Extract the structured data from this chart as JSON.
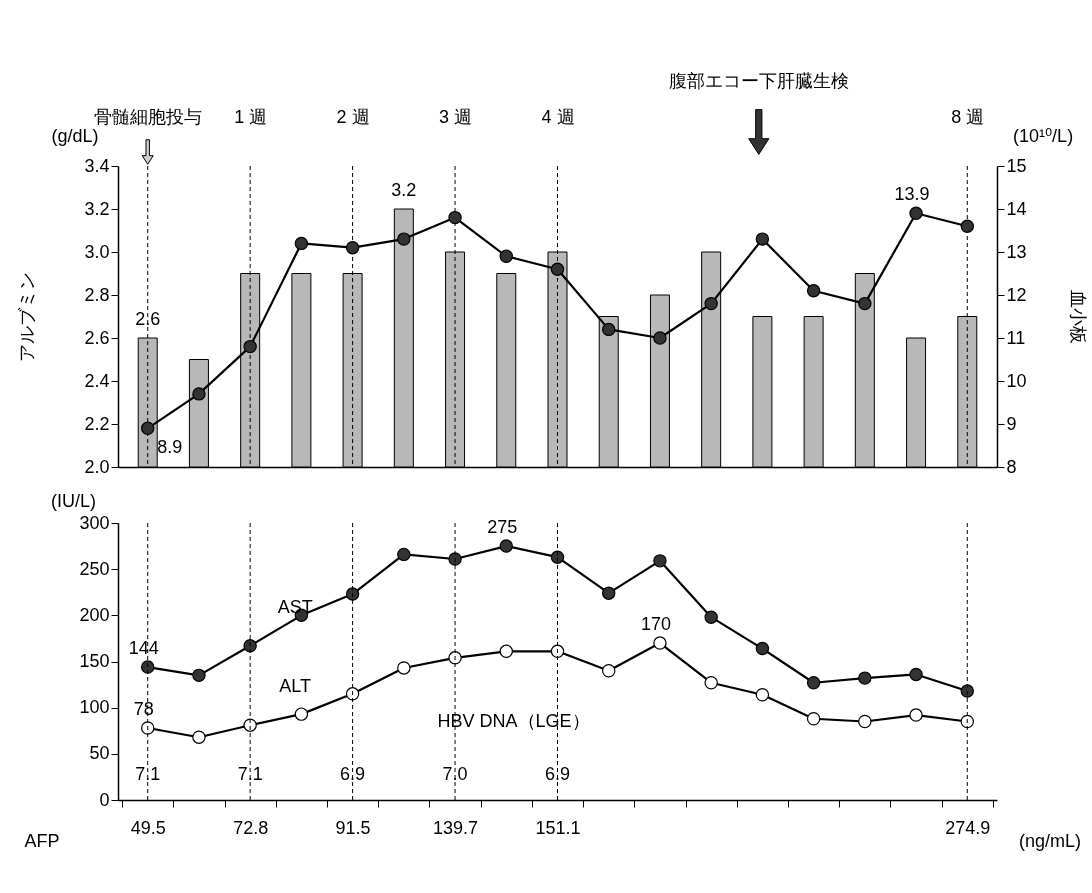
{
  "chart_data": [
    {
      "type": "bar",
      "categories": [
        "骨髄細胞投与",
        null,
        "1 週",
        null,
        "2 週",
        null,
        "3 週",
        null,
        "4 週",
        null,
        null,
        null,
        null,
        null,
        null,
        null,
        "8 週"
      ],
      "series": [
        {
          "color": "#b8b8b8",
          "values": [
            2.6,
            2.5,
            2.9,
            2.9,
            2.9,
            3.2,
            3.0,
            2.9,
            3.0,
            2.7,
            2.8,
            3.0,
            2.7,
            2.7,
            2.9,
            2.6,
            2.7
          ],
          "value_labels": [
            "2.6",
            null,
            null,
            null,
            null,
            "3.2",
            null,
            null,
            null,
            null,
            null,
            null,
            null,
            null,
            null,
            null,
            null
          ]
        },
        {
          "type": "line",
          "axis": "y2",
          "color": "#333333",
          "values": [
            8.9,
            9.7,
            10.8,
            13.2,
            13.1,
            13.3,
            13.8,
            12.9,
            12.6,
            11.2,
            11.0,
            11.8,
            13.3,
            12.1,
            11.8,
            13.9,
            13.6
          ],
          "value_labels": [
            "8.9",
            null,
            null,
            null,
            null,
            null,
            null,
            null,
            null,
            null,
            null,
            null,
            null,
            null,
            null,
            "13.9",
            null
          ]
        }
      ],
      "ylim": [
        2.0,
        3.4
      ],
      "yticks": [
        {
          "value": 2,
          "label": "2.0"
        },
        2.2,
        2.4,
        2.6,
        2.8,
        {
          "value": 3,
          "label": "3.0"
        },
        3.2,
        3.4
      ],
      "y2lim": [
        8,
        15
      ],
      "y2ticks": [
        8,
        9,
        10,
        11,
        12,
        13,
        14,
        15
      ],
      "ylabel": "アルブミン",
      "y2label": "血小板",
      "marker": "circle",
      "line_style": "solid",
      "grid": false,
      "ref_lines": [
        {
          "axis": "x",
          "value": "骨髄細胞投与",
          "line_style": "dashed",
          "color": "#000000"
        },
        {
          "axis": "x",
          "value": "1 週",
          "line_style": "dashed",
          "color": "#000000"
        },
        {
          "axis": "x",
          "value": "2 週",
          "line_style": "dashed",
          "color": "#000000"
        },
        {
          "axis": "x",
          "value": "3 週",
          "line_style": "dashed",
          "color": "#000000"
        },
        {
          "axis": "x",
          "value": "4 週",
          "line_style": "dashed",
          "color": "#000000"
        },
        {
          "axis": "x",
          "value": "8 週",
          "line_style": "dashed",
          "color": "#000000"
        }
      ],
      "annotations": [
        "(g/dL)",
        "(10¹⁰/L)",
        "腹部エコー下肝臓生検"
      ]
    },
    {
      "type": "line",
      "categories": [
        "49.5",
        null,
        "72.8",
        null,
        "91.5",
        null,
        "139.7",
        null,
        "151.1",
        null,
        null,
        null,
        null,
        null,
        null,
        null,
        "274.9"
      ],
      "series": [
        {
          "name": "AST",
          "color": "#333333",
          "values": [
            144,
            135,
            167,
            200,
            223,
            266,
            261,
            275,
            263,
            224,
            259,
            198,
            164,
            127,
            132,
            136,
            118
          ],
          "value_labels": [
            "144",
            null,
            null,
            null,
            null,
            null,
            null,
            "275",
            null,
            null,
            null,
            null,
            null,
            null,
            null,
            null,
            null
          ]
        },
        {
          "name": "ALT",
          "color": "#ffffff",
          "values": [
            78,
            68,
            81,
            93,
            115,
            143,
            154,
            161,
            161,
            140,
            170,
            127,
            114,
            88,
            85,
            92,
            85
          ],
          "value_labels": [
            "78",
            null,
            null,
            null,
            null,
            null,
            null,
            null,
            null,
            null,
            "170",
            null,
            null,
            null,
            null,
            null,
            null
          ]
        }
      ],
      "ylim": [
        0,
        300
      ],
      "yticks": [
        0,
        50,
        100,
        150,
        200,
        250,
        300
      ],
      "ylabel": "(IU/L)",
      "marker": "circle",
      "line_style": "solid",
      "grid": false,
      "ref_lines": [
        {
          "axis": "x",
          "value": "49.5",
          "line_style": "dashed",
          "color": "#000000"
        },
        {
          "axis": "x",
          "value": "72.8",
          "line_style": "dashed",
          "color": "#000000"
        },
        {
          "axis": "x",
          "value": "91.5",
          "line_style": "dashed",
          "color": "#000000"
        },
        {
          "axis": "x",
          "value": "139.7",
          "line_style": "dashed",
          "color": "#000000"
        },
        {
          "axis": "x",
          "value": "151.1",
          "line_style": "dashed",
          "color": "#000000"
        },
        {
          "axis": "x",
          "value": "274.9",
          "line_style": "dashed",
          "color": "#000000"
        }
      ],
      "annotations": [
        "AFP",
        "(ng/mL)",
        "HBV DNA（LGE）",
        {
          "text": "7.1",
          "x": "49.5",
          "y": 27
        },
        {
          "text": "7.1",
          "x": "72.8",
          "y": 27
        },
        {
          "text": "6.9",
          "x": "91.5",
          "y": 27
        },
        {
          "text": "7.0",
          "x": "139.7",
          "y": 27
        },
        {
          "text": "6.9",
          "x": "151.1",
          "y": 27
        }
      ]
    }
  ]
}
